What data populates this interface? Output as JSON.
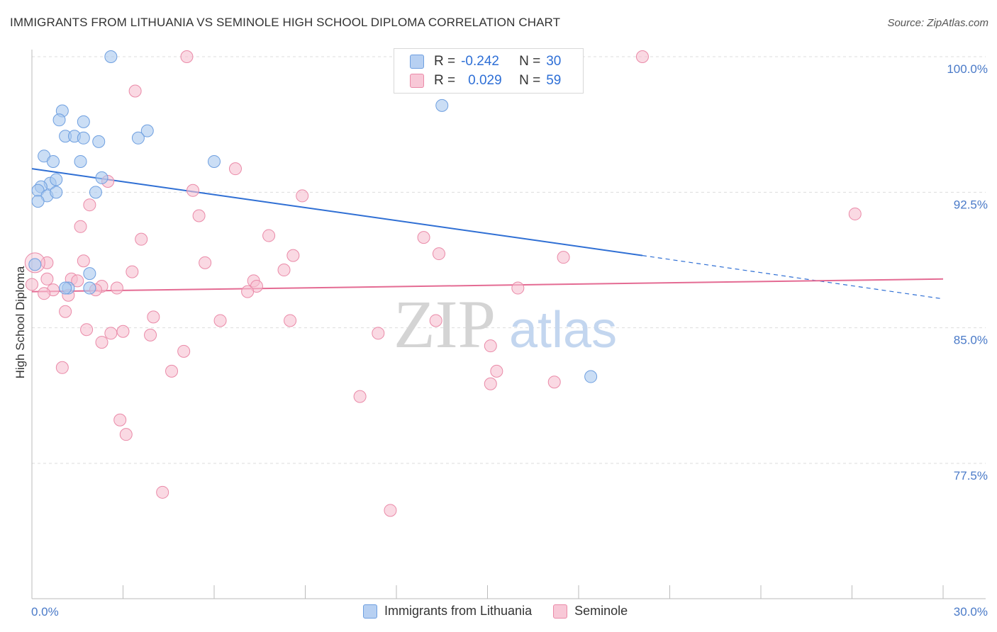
{
  "title": "IMMIGRANTS FROM LITHUANIA VS SEMINOLE HIGH SCHOOL DIPLOMA CORRELATION CHART",
  "source": "Source: ZipAtlas.com",
  "watermark": {
    "zip": "ZIP",
    "atlas": "atlas"
  },
  "legend": {
    "r_label": "R =",
    "n_label": "N =",
    "rows": [
      {
        "r": "-0.242",
        "n": "30"
      },
      {
        "r": "0.029",
        "n": "59"
      }
    ]
  },
  "colors": {
    "blue_fill": "#a9c8ef",
    "blue_stroke": "#6e9fe0",
    "blue_line": "#2f6fd4",
    "pink_fill": "#f6bfd0",
    "pink_stroke": "#ea8aa8",
    "pink_line": "#e46b93"
  },
  "chart_data": {
    "type": "scatter",
    "title": "IMMIGRANTS FROM LITHUANIA VS SEMINOLE HIGH SCHOOL DIPLOMA CORRELATION CHART",
    "ylabel": "High School Diploma",
    "xlabel": "",
    "xlim": [
      0,
      30
    ],
    "ylim": [
      70.5,
      101.2
    ],
    "x_tick_labels": [
      "0.0%",
      "30.0%"
    ],
    "y_ticks": [
      77.5,
      85.0,
      92.5,
      100.0
    ],
    "y_tick_labels": [
      "77.5%",
      "85.0%",
      "92.5%",
      "100.0%"
    ],
    "grid": true,
    "series": [
      {
        "name": "Immigrants from Lithuania",
        "r": -0.242,
        "n": 30,
        "trend": {
          "x0": 0,
          "y0": 93.8,
          "x1": 20.1,
          "y1": 89.0,
          "dash_to_x": 30,
          "dash_to_y": 86.6
        },
        "points": [
          [
            2.6,
            100.0
          ],
          [
            1.0,
            97.0
          ],
          [
            0.9,
            96.5
          ],
          [
            1.7,
            96.4
          ],
          [
            1.1,
            95.6
          ],
          [
            1.4,
            95.6
          ],
          [
            1.7,
            95.5
          ],
          [
            2.2,
            95.3
          ],
          [
            3.8,
            95.9
          ],
          [
            3.5,
            95.5
          ],
          [
            0.4,
            94.5
          ],
          [
            0.7,
            94.2
          ],
          [
            1.6,
            94.2
          ],
          [
            2.3,
            93.3
          ],
          [
            0.6,
            93.0
          ],
          [
            0.8,
            93.2
          ],
          [
            0.3,
            92.8
          ],
          [
            0.2,
            92.6
          ],
          [
            0.5,
            92.3
          ],
          [
            0.2,
            92.0
          ],
          [
            0.8,
            92.5
          ],
          [
            2.1,
            92.5
          ],
          [
            6.0,
            94.2
          ],
          [
            13.5,
            97.3
          ],
          [
            0.1,
            88.5
          ],
          [
            1.9,
            88.0
          ],
          [
            1.2,
            87.2
          ],
          [
            1.9,
            87.2
          ],
          [
            1.1,
            87.2
          ],
          [
            18.4,
            82.3
          ]
        ]
      },
      {
        "name": "Seminole",
        "r": 0.029,
        "n": 59,
        "trend": {
          "x0": 0,
          "y0": 87.0,
          "x1": 30,
          "y1": 87.7
        },
        "points": [
          [
            5.1,
            100.0
          ],
          [
            20.1,
            100.0
          ],
          [
            3.4,
            98.1
          ],
          [
            6.7,
            93.8
          ],
          [
            2.5,
            93.1
          ],
          [
            5.3,
            92.6
          ],
          [
            8.9,
            92.3
          ],
          [
            1.9,
            91.8
          ],
          [
            5.5,
            91.2
          ],
          [
            27.1,
            91.3
          ],
          [
            1.6,
            90.6
          ],
          [
            7.8,
            90.1
          ],
          [
            12.9,
            90.0
          ],
          [
            3.6,
            89.9
          ],
          [
            17.5,
            88.9
          ],
          [
            13.4,
            89.1
          ],
          [
            8.6,
            89.0
          ],
          [
            1.7,
            88.7
          ],
          [
            5.7,
            88.6
          ],
          [
            0.5,
            88.6
          ],
          [
            8.3,
            88.2
          ],
          [
            3.3,
            88.1
          ],
          [
            1.3,
            87.7
          ],
          [
            0.5,
            87.7
          ],
          [
            1.5,
            87.6
          ],
          [
            7.3,
            87.6
          ],
          [
            7.4,
            87.3
          ],
          [
            2.3,
            87.3
          ],
          [
            0.0,
            87.4
          ],
          [
            2.8,
            87.2
          ],
          [
            0.7,
            87.1
          ],
          [
            16.0,
            87.2
          ],
          [
            7.1,
            87.0
          ],
          [
            2.1,
            87.1
          ],
          [
            1.2,
            86.8
          ],
          [
            0.4,
            86.9
          ],
          [
            1.1,
            85.9
          ],
          [
            4.0,
            85.6
          ],
          [
            6.2,
            85.4
          ],
          [
            8.5,
            85.4
          ],
          [
            13.3,
            85.4
          ],
          [
            1.8,
            84.9
          ],
          [
            2.6,
            84.7
          ],
          [
            3.0,
            84.8
          ],
          [
            3.9,
            84.6
          ],
          [
            11.4,
            84.7
          ],
          [
            2.3,
            84.2
          ],
          [
            15.1,
            84.0
          ],
          [
            5.0,
            83.7
          ],
          [
            1.0,
            82.8
          ],
          [
            4.6,
            82.6
          ],
          [
            15.3,
            82.6
          ],
          [
            15.1,
            81.9
          ],
          [
            17.2,
            82.0
          ],
          [
            10.8,
            81.2
          ],
          [
            2.9,
            79.9
          ],
          [
            3.1,
            79.1
          ],
          [
            4.3,
            75.9
          ],
          [
            11.8,
            74.9
          ]
        ]
      }
    ]
  }
}
